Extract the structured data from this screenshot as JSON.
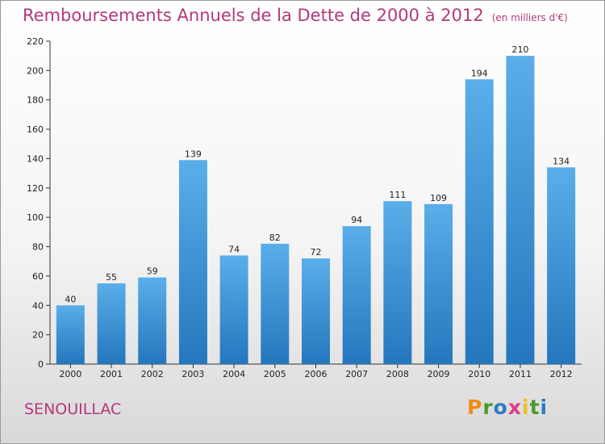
{
  "title": "Remboursements Annuels de la Dette de 2000 à 2012",
  "unit": "(en milliers d'€)",
  "city": "SENOUILLAC",
  "logo": "Proxiti",
  "colors": {
    "title": "#b3387a",
    "bar_top": "#5aaee9",
    "bar_bottom": "#2477bd",
    "logo": [
      "#f08c1a",
      "#4a9a2d",
      "#2b7cc4",
      "#e23a8c",
      "#f0c01a",
      "#4a9a2d",
      "#2b7cc4"
    ]
  },
  "chart_data": {
    "type": "bar",
    "categories": [
      "2000",
      "2001",
      "2002",
      "2003",
      "2004",
      "2005",
      "2006",
      "2007",
      "2008",
      "2009",
      "2010",
      "2011",
      "2012"
    ],
    "values": [
      40,
      55,
      59,
      139,
      74,
      82,
      72,
      94,
      111,
      109,
      194,
      210,
      134
    ],
    "ylim": [
      0,
      220
    ],
    "yticks": [
      0,
      20,
      40,
      60,
      80,
      100,
      120,
      140,
      160,
      180,
      200,
      220
    ],
    "grid": false
  }
}
